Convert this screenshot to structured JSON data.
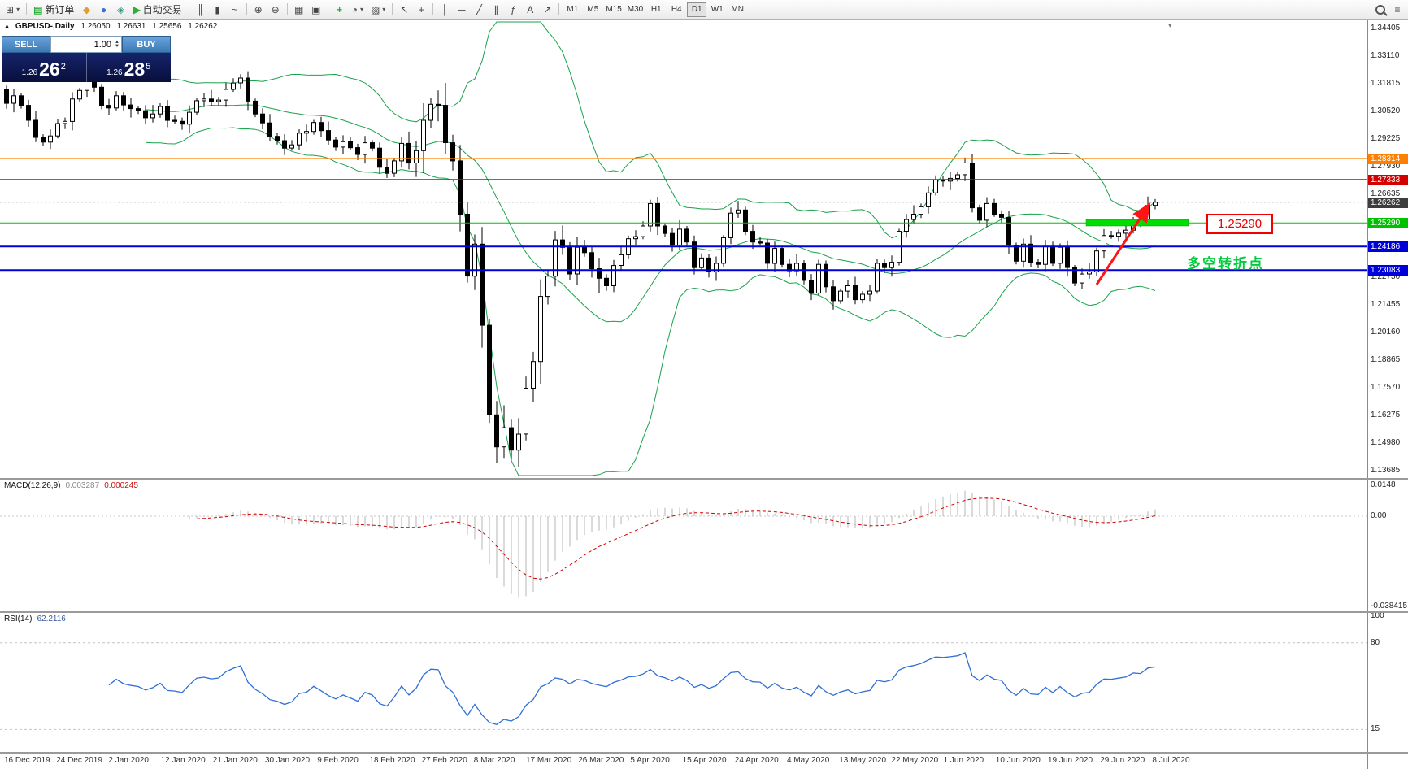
{
  "toolbar": {
    "new_order_label": "新订单",
    "autotrade_label": "自动交易",
    "timeframes": [
      "M1",
      "M5",
      "M15",
      "M30",
      "H1",
      "H4",
      "D1",
      "W1",
      "MN"
    ],
    "active_timeframe": "D1",
    "icons": {
      "new_chart": "⊞",
      "caret": "▾",
      "new_order": "▤",
      "mql5": "◆",
      "community": "●",
      "market": "◈",
      "autotrade_play": "▶",
      "bar_chart": "║",
      "candle_chart": "▮",
      "line_chart": "~",
      "zoom_in": "⊕",
      "zoom_out": "⊖",
      "tile_windows": "▦",
      "arrange": "▣",
      "indicators": "+",
      "periods": "◔",
      "templates": "▨",
      "cursor": "↖",
      "crosshair": "+",
      "vline": "│",
      "hline": "─",
      "trendline": "╱",
      "channel": "∥",
      "fibonacci": "ƒ",
      "text_tool": "A",
      "arrows_tool": "↗",
      "menu": "≡",
      "shift_marker": "▾",
      "collapse": "▴"
    }
  },
  "chart": {
    "header": {
      "symbol_period": "GBPUSD-,Daily",
      "open": "1.26050",
      "high": "1.26631",
      "low": "1.25656",
      "close": "1.26262"
    },
    "one_click": {
      "sell_label": "SELL",
      "buy_label": "BUY",
      "volume": "1.00",
      "sell_price_prefix": "1.26",
      "sell_price_big": "26",
      "sell_price_sup": "2",
      "buy_price_prefix": "1.26",
      "buy_price_big": "28",
      "buy_price_sup": "5"
    },
    "annotations": {
      "level_label": "1.25290",
      "note": "多空转折点"
    }
  },
  "macd": {
    "title": "MACD(12,26,9)",
    "value_main": "0.003287",
    "value_signal": "0.000245",
    "axis": [
      "0.0148",
      "0.00",
      "-0.038415"
    ]
  },
  "rsi": {
    "title": "RSI(14)",
    "value": "62.2116",
    "axis": [
      "100",
      "80",
      "15"
    ],
    "levels": [
      80,
      15
    ]
  },
  "chart_data": {
    "type": "candlestick",
    "symbol": "GBPUSD",
    "period": "Daily",
    "first_open": 1.3155,
    "closes": [
      1.309,
      1.3125,
      1.308,
      1.301,
      1.293,
      1.2908,
      1.2937,
      1.2995,
      1.3005,
      1.311,
      1.315,
      1.32,
      1.3165,
      1.308,
      1.3068,
      1.3125,
      1.3082,
      1.3065,
      1.3055,
      1.3022,
      1.304,
      1.3075,
      1.301,
      1.3005,
      1.2992,
      1.3048,
      1.3102,
      1.311,
      1.3098,
      1.3105,
      1.3155,
      1.3185,
      1.3208,
      1.31,
      1.304,
      1.2998,
      1.2935,
      1.2915,
      1.288,
      1.2895,
      1.295,
      1.2958,
      1.3,
      1.2962,
      1.2918,
      1.2885,
      1.291,
      1.2882,
      1.285,
      1.2905,
      1.288,
      1.279,
      1.2762,
      1.282,
      1.2902,
      1.281,
      1.2868,
      1.301,
      1.3085,
      1.308,
      1.2905,
      1.282,
      1.257,
      1.228,
      1.243,
      1.205,
      1.163,
      1.148,
      1.157,
      1.1465,
      1.154,
      1.1755,
      1.188,
      1.2185,
      1.228,
      1.245,
      1.2415,
      1.229,
      1.2415,
      1.239,
      1.2315,
      1.227,
      1.2235,
      1.233,
      1.238,
      1.2455,
      1.2465,
      1.2515,
      1.262,
      1.2515,
      1.248,
      1.2425,
      1.25,
      1.244,
      1.232,
      1.2365,
      1.23,
      1.234,
      1.246,
      1.2575,
      1.259,
      1.249,
      1.244,
      1.2435,
      1.234,
      1.241,
      1.2335,
      1.2305,
      1.234,
      1.226,
      1.22,
      1.2335,
      1.223,
      1.2165,
      1.221,
      1.2235,
      1.217,
      1.2195,
      1.221,
      1.234,
      1.232,
      1.2345,
      1.249,
      1.2545,
      1.257,
      1.2605,
      1.267,
      1.273,
      1.2725,
      1.2738,
      1.2755,
      1.281,
      1.26,
      1.2542,
      1.262,
      1.257,
      1.2555,
      1.2425,
      1.235,
      1.243,
      1.2345,
      1.2335,
      1.242,
      1.234,
      1.2415,
      1.232,
      1.2248,
      1.229,
      1.23,
      1.2398,
      1.247,
      1.2467,
      1.2481,
      1.2495,
      1.2545,
      1.254,
      1.2611,
      1.2626
    ],
    "wick_pattern": [
      0.0018,
      0.0032,
      0.0012,
      0.0026,
      0.0042,
      0.0015,
      0.003,
      0.0022
    ],
    "volatile_start": 55,
    "volatile_end": 74,
    "volatile_mult": 2.5,
    "indicators": {
      "bollinger_period": 20,
      "bollinger_dev": 2,
      "macd": [
        12,
        26,
        9
      ],
      "rsi": 14
    },
    "levels": [
      {
        "label": "1.28314",
        "price": 1.28314,
        "color": "#ff7f00",
        "line": "solid",
        "lw": 1
      },
      {
        "label": "1.27333",
        "price": 1.27333,
        "color": "#d40000",
        "line": "solid",
        "lw": 1
      },
      {
        "label": "1.26262",
        "price": 1.26262,
        "color": "#3d3d3d",
        "line": "dotted",
        "lw": 1
      },
      {
        "label": "1.25290",
        "price": 1.2529,
        "color": "#00c000",
        "line": "solid",
        "lw": 1
      },
      {
        "label": "1.24186",
        "price": 1.24186,
        "color": "#0000d8",
        "line": "solid",
        "lw": 2
      },
      {
        "label": "1.23083",
        "price": 1.23083,
        "color": "#0000d8",
        "line": "solid",
        "lw": 2
      }
    ],
    "y_axis": {
      "top": 1.34405,
      "step": 0.01295,
      "labels": [
        "1.34405",
        "1.33110",
        "1.31815",
        "1.30520",
        "1.29225",
        "1.27930",
        "1.26635",
        "1.22750",
        "1.21455",
        "1.20160",
        "1.18865",
        "1.17570",
        "1.16275",
        "1.14980",
        "1.13685"
      ]
    },
    "x_dates": [
      "16 Dec 2019",
      "24 Dec 2019",
      "2 Jan 2020",
      "12 Jan 2020",
      "21 Jan 2020",
      "30 Jan 2020",
      "9 Feb 2020",
      "18 Feb 2020",
      "27 Feb 2020",
      "8 Mar 2020",
      "17 Mar 2020",
      "26 Mar 2020",
      "5 Apr 2020",
      "15 Apr 2020",
      "24 Apr 2020",
      "4 May 2020",
      "13 May 2020",
      "22 May 2020",
      "1 Jun 2020",
      "10 Jun 2020",
      "19 Jun 2020",
      "29 Jun 2020",
      "8 Jul 2020"
    ]
  }
}
